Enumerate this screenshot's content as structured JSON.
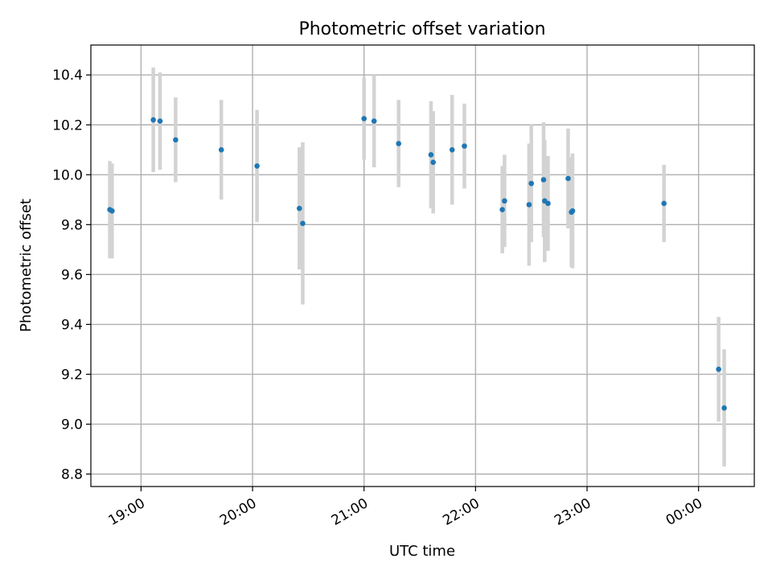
{
  "chart_data": {
    "type": "scatter",
    "title": "Photometric offset variation",
    "xlabel": "UTC time",
    "ylabel": "Photometric offset",
    "xlim_hours": [
      18.55,
      24.5
    ],
    "ylim": [
      8.75,
      10.52
    ],
    "grid": true,
    "x_ticks": [
      {
        "hour": 19,
        "label": "19:00"
      },
      {
        "hour": 20,
        "label": "20:00"
      },
      {
        "hour": 21,
        "label": "21:00"
      },
      {
        "hour": 22,
        "label": "22:00"
      },
      {
        "hour": 23,
        "label": "23:00"
      },
      {
        "hour": 24,
        "label": "00:00"
      }
    ],
    "y_ticks": [
      {
        "value": 8.8,
        "label": "8.8"
      },
      {
        "value": 9.0,
        "label": "9.0"
      },
      {
        "value": 9.2,
        "label": "9.2"
      },
      {
        "value": 9.4,
        "label": "9.4"
      },
      {
        "value": 9.6,
        "label": "9.6"
      },
      {
        "value": 9.8,
        "label": "9.8"
      },
      {
        "value": 10.0,
        "label": "10.0"
      },
      {
        "value": 10.2,
        "label": "10.2"
      },
      {
        "value": 10.4,
        "label": "10.4"
      }
    ],
    "colors": {
      "point": "#1f77b4",
      "errorbar": "#d3d3d3",
      "grid": "#b0b0b0"
    },
    "series": [
      {
        "name": "offset",
        "points": [
          {
            "x": 18.72,
            "y": 9.86,
            "err": 0.195
          },
          {
            "x": 18.74,
            "y": 9.855,
            "err": 0.19
          },
          {
            "x": 19.11,
            "y": 10.22,
            "err": 0.21
          },
          {
            "x": 19.17,
            "y": 10.215,
            "err": 0.195
          },
          {
            "x": 19.31,
            "y": 10.14,
            "err": 0.17
          },
          {
            "x": 19.72,
            "y": 10.1,
            "err": 0.2
          },
          {
            "x": 20.04,
            "y": 10.035,
            "err": 0.225
          },
          {
            "x": 20.42,
            "y": 9.865,
            "err": 0.245
          },
          {
            "x": 20.45,
            "y": 9.805,
            "err": 0.325
          },
          {
            "x": 21.0,
            "y": 10.225,
            "err": 0.165
          },
          {
            "x": 21.09,
            "y": 10.215,
            "err": 0.185
          },
          {
            "x": 21.31,
            "y": 10.125,
            "err": 0.175
          },
          {
            "x": 21.6,
            "y": 10.08,
            "err": 0.215
          },
          {
            "x": 21.62,
            "y": 10.05,
            "err": 0.205
          },
          {
            "x": 21.79,
            "y": 10.1,
            "err": 0.22
          },
          {
            "x": 21.9,
            "y": 10.115,
            "err": 0.17
          },
          {
            "x": 22.24,
            "y": 9.86,
            "err": 0.175
          },
          {
            "x": 22.26,
            "y": 9.895,
            "err": 0.185
          },
          {
            "x": 22.48,
            "y": 9.88,
            "err": 0.245
          },
          {
            "x": 22.5,
            "y": 9.965,
            "err": 0.235
          },
          {
            "x": 22.61,
            "y": 9.98,
            "err": 0.23
          },
          {
            "x": 22.62,
            "y": 9.895,
            "err": 0.245
          },
          {
            "x": 22.65,
            "y": 9.885,
            "err": 0.19
          },
          {
            "x": 22.83,
            "y": 9.985,
            "err": 0.2
          },
          {
            "x": 22.86,
            "y": 9.85,
            "err": 0.22
          },
          {
            "x": 22.87,
            "y": 9.855,
            "err": 0.23
          },
          {
            "x": 23.69,
            "y": 9.885,
            "err": 0.155
          },
          {
            "x": 24.18,
            "y": 9.22,
            "err": 0.21
          },
          {
            "x": 24.23,
            "y": 9.065,
            "err": 0.235
          }
        ]
      }
    ]
  }
}
